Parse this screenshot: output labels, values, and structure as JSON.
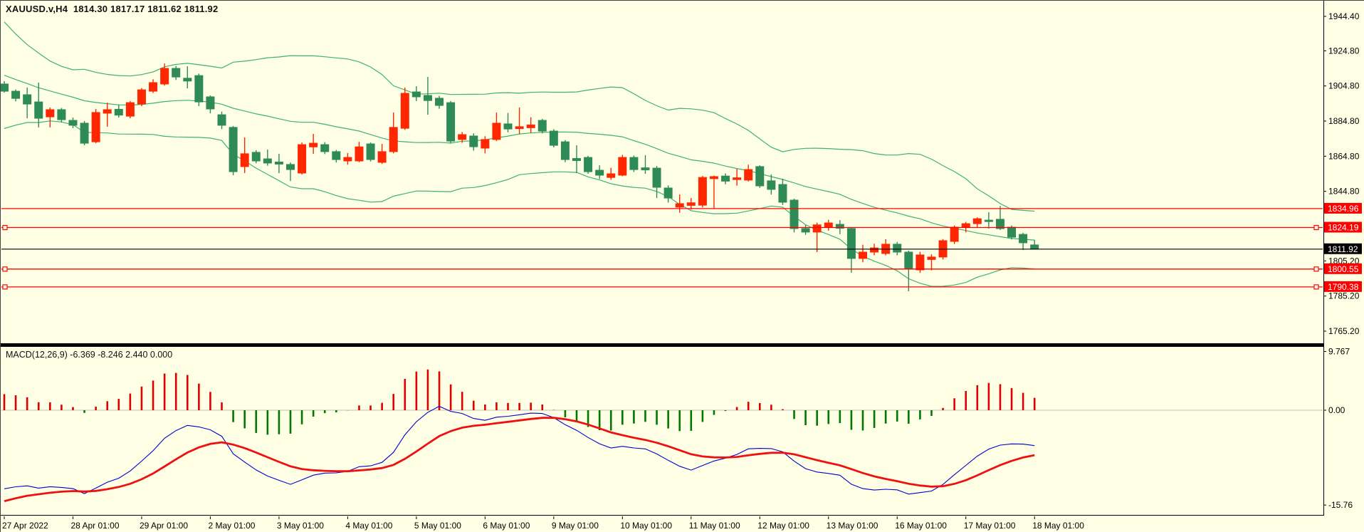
{
  "window": {
    "title": "XAUUSD.v,H4  1814.30 1817.17 1811.62 1811.92",
    "symbol": "XAUUSD.v",
    "timeframe": "H4",
    "quote": {
      "open": "1814.30",
      "high": "1817.17",
      "low": "1811.62",
      "close": "1811.92"
    }
  },
  "macd_panel": {
    "label": "MACD(12,26,9) -6.369 -8.246 2.440 0.000",
    "axis_labels": [
      {
        "text": "9.767",
        "value": 9.767
      },
      {
        "text": "0.00",
        "value": 0
      },
      {
        "text": "-15.76",
        "value": -15.76
      }
    ]
  },
  "price_axis": {
    "ticks": [
      {
        "text": "1944.40",
        "value": 1944.4
      },
      {
        "text": "1924.80",
        "value": 1924.8
      },
      {
        "text": "1904.80",
        "value": 1904.8
      },
      {
        "text": "1884.80",
        "value": 1884.8
      },
      {
        "text": "1864.80",
        "value": 1864.8
      },
      {
        "text": "1844.80",
        "value": 1844.8
      },
      {
        "text": "1805.20",
        "value": 1805.2
      },
      {
        "text": "1785.20",
        "value": 1785.2
      },
      {
        "text": "1765.20",
        "value": 1765.2
      }
    ],
    "bid_badge": {
      "text": "1811.92",
      "value": 1811.92
    }
  },
  "time_axis": [
    "27 Apr 2022",
    "28 Apr 01:00",
    "29 Apr 01:00",
    "2 May 01:00",
    "3 May 01:00",
    "4 May 01:00",
    "5 May 01:00",
    "6 May 01:00",
    "9 May 01:00",
    "10 May 01:00",
    "11 May 01:00",
    "12 May 01:00",
    "13 May 01:00",
    "16 May 01:00",
    "17 May 01:00",
    "18 May 01:00"
  ],
  "levels": [
    {
      "text": "1834.96",
      "value": 1834.96,
      "selected": false
    },
    {
      "text": "1824.19",
      "value": 1824.19,
      "selected": true
    },
    {
      "text": "1800.55",
      "value": 1800.55,
      "selected": true
    },
    {
      "text": "1790.38",
      "value": 1790.38,
      "selected": true
    }
  ],
  "colors": {
    "background": "#FFFFE6",
    "bull_candle": "#FF2600",
    "bear_candle": "#2E8B57",
    "bollinger": "#3CB371",
    "level_line": "#FF0000",
    "bid_line": "#000000",
    "badge_red_bg": "#FF0000",
    "badge_black_bg": "#000000",
    "badge_text": "#FFFFFF",
    "macd_line": "#0000CD",
    "macd_signal": "#EE1111",
    "hist_positive": "#DD0000",
    "hist_negative": "#007800",
    "axis_text": "#000000",
    "border": "#000000"
  },
  "chart_data": {
    "type": "candlestick+macd",
    "title": "XAUUSD.v H4 candlestick chart with Bollinger Bands(20,2) and MACD(12,26,9)",
    "x_categories_days": [
      "27 Apr 2022",
      "28 Apr 01:00",
      "29 Apr 01:00",
      "2 May 01:00",
      "3 May 01:00",
      "4 May 01:00",
      "5 May 01:00",
      "6 May 01:00",
      "9 May 01:00",
      "10 May 01:00",
      "11 May 01:00",
      "12 May 01:00",
      "13 May 01:00",
      "16 May 01:00",
      "17 May 01:00",
      "18 May 01:00"
    ],
    "candles_per_day": 6,
    "price_range_visible": [
      1758,
      1953
    ],
    "macd_range_visible": [
      -15.76,
      9.767
    ],
    "grid": false,
    "ohlc": [
      [
        1905.9,
        1907.5,
        1901.0,
        1901.8
      ],
      [
        1901.8,
        1902.8,
        1896.0,
        1897.7
      ],
      [
        1899.8,
        1903.9,
        1886.4,
        1894.5
      ],
      [
        1895.7,
        1906.7,
        1881.2,
        1886.4
      ],
      [
        1887.2,
        1892.5,
        1881.2,
        1891.3
      ],
      [
        1891.3,
        1892.3,
        1884.0,
        1885.6
      ],
      [
        1885.2,
        1886.8,
        1880.8,
        1882.4
      ],
      [
        1883.6,
        1884.8,
        1871.0,
        1872.2
      ],
      [
        1873.0,
        1891.7,
        1872.2,
        1889.7
      ],
      [
        1889.3,
        1895.3,
        1881.6,
        1891.3
      ],
      [
        1891.5,
        1894.2,
        1886.8,
        1888.2
      ],
      [
        1887.6,
        1896.2,
        1886.4,
        1895.3
      ],
      [
        1894.5,
        1903.6,
        1893.3,
        1902.6
      ],
      [
        1901.8,
        1908.6,
        1900.8,
        1906.7
      ],
      [
        1905.9,
        1917.6,
        1905.0,
        1914.8
      ],
      [
        1914.8,
        1916.2,
        1908.2,
        1909.9
      ],
      [
        1909.2,
        1916.0,
        1903.4,
        1907.6
      ],
      [
        1910.7,
        1911.8,
        1893.3,
        1895.7
      ],
      [
        1898.6,
        1899.4,
        1889.2,
        1891.7
      ],
      [
        1888.4,
        1890.2,
        1880.2,
        1882.4
      ],
      [
        1881.2,
        1882.0,
        1854.0,
        1856.0
      ],
      [
        1858.9,
        1875.5,
        1855.2,
        1866.2
      ],
      [
        1867.0,
        1868.2,
        1860.8,
        1862.1
      ],
      [
        1863.3,
        1868.6,
        1859.4,
        1860.9
      ],
      [
        1861.5,
        1866.2,
        1855.2,
        1860.3
      ],
      [
        1860.1,
        1861.2,
        1850.7,
        1857.2
      ],
      [
        1855.2,
        1872.6,
        1854.4,
        1871.4
      ],
      [
        1870.1,
        1877.5,
        1866.2,
        1872.2
      ],
      [
        1871.4,
        1872.8,
        1866.0,
        1867.4
      ],
      [
        1867.4,
        1868.4,
        1861.2,
        1862.9
      ],
      [
        1862.1,
        1866.6,
        1860.0,
        1864.1
      ],
      [
        1862.1,
        1873.0,
        1861.4,
        1870.1
      ],
      [
        1871.8,
        1872.6,
        1861.8,
        1862.9
      ],
      [
        1861.3,
        1871.8,
        1860.4,
        1867.4
      ],
      [
        1867.4,
        1889.7,
        1866.4,
        1881.2
      ],
      [
        1880.7,
        1903.9,
        1879.8,
        1900.6
      ],
      [
        1901.4,
        1904.6,
        1896.2,
        1898.6
      ],
      [
        1899.4,
        1909.9,
        1888.4,
        1896.5
      ],
      [
        1897.8,
        1899.2,
        1891.8,
        1893.7
      ],
      [
        1895.3,
        1896.2,
        1872.0,
        1873.4
      ],
      [
        1874.3,
        1878.6,
        1872.4,
        1877.1
      ],
      [
        1876.3,
        1877.8,
        1868.0,
        1870.2
      ],
      [
        1869.4,
        1876.2,
        1866.4,
        1874.3
      ],
      [
        1874.3,
        1889.7,
        1873.4,
        1883.6
      ],
      [
        1883.2,
        1889.4,
        1878.4,
        1880.3
      ],
      [
        1880.5,
        1892.5,
        1877.5,
        1881.6
      ],
      [
        1881.0,
        1887.0,
        1878.0,
        1882.6
      ],
      [
        1885.2,
        1886.0,
        1877.8,
        1879.1
      ],
      [
        1879.1,
        1880.2,
        1869.8,
        1871.0
      ],
      [
        1873.0,
        1874.0,
        1861.4,
        1862.9
      ],
      [
        1863.5,
        1871.0,
        1855.2,
        1862.3
      ],
      [
        1864.1,
        1865.0,
        1854.8,
        1856.0
      ],
      [
        1856.8,
        1859.6,
        1851.8,
        1854.0
      ],
      [
        1852.7,
        1858.2,
        1851.4,
        1854.8
      ],
      [
        1854.0,
        1865.6,
        1853.4,
        1864.1
      ],
      [
        1864.1,
        1865.2,
        1855.8,
        1857.2
      ],
      [
        1858.2,
        1865.4,
        1854.8,
        1857.0
      ],
      [
        1858.0,
        1859.2,
        1841.0,
        1847.1
      ],
      [
        1846.7,
        1848.2,
        1838.4,
        1841.0
      ],
      [
        1835.8,
        1843.0,
        1832.6,
        1837.8
      ],
      [
        1836.8,
        1841.0,
        1834.4,
        1838.3
      ],
      [
        1836.9,
        1853.6,
        1835.6,
        1852.7
      ],
      [
        1852.0,
        1853.8,
        1835.0,
        1853.2
      ],
      [
        1853.5,
        1855.0,
        1848.8,
        1850.6
      ],
      [
        1851.5,
        1857.6,
        1848.0,
        1852.5
      ],
      [
        1851.2,
        1860.0,
        1850.4,
        1857.2
      ],
      [
        1858.9,
        1859.6,
        1846.8,
        1847.9
      ],
      [
        1850.8,
        1854.4,
        1843.0,
        1845.9
      ],
      [
        1848.7,
        1852.0,
        1837.0,
        1838.6
      ],
      [
        1839.8,
        1840.6,
        1821.4,
        1823.6
      ],
      [
        1823.6,
        1825.6,
        1820.0,
        1821.6
      ],
      [
        1821.6,
        1827.0,
        1810.2,
        1825.7
      ],
      [
        1824.4,
        1828.6,
        1822.4,
        1826.8
      ],
      [
        1826.0,
        1828.4,
        1820.4,
        1823.8
      ],
      [
        1823.6,
        1824.2,
        1798.5,
        1806.6
      ],
      [
        1806.6,
        1814.4,
        1804.4,
        1810.2
      ],
      [
        1810.2,
        1815.0,
        1808.4,
        1812.6
      ],
      [
        1809.4,
        1817.5,
        1808.4,
        1814.7
      ],
      [
        1814.7,
        1816.0,
        1808.4,
        1810.2
      ],
      [
        1810.2,
        1811.0,
        1787.9,
        1800.5
      ],
      [
        1800.1,
        1810.4,
        1798.4,
        1808.6
      ],
      [
        1806.0,
        1809.0,
        1799.8,
        1807.4
      ],
      [
        1807.4,
        1817.6,
        1806.0,
        1816.7
      ],
      [
        1816.3,
        1825.4,
        1814.8,
        1824.4
      ],
      [
        1824.4,
        1827.4,
        1821.4,
        1826.4
      ],
      [
        1826.4,
        1830.0,
        1824.2,
        1829.2
      ],
      [
        1828.4,
        1832.9,
        1823.6,
        1827.6
      ],
      [
        1828.9,
        1836.4,
        1822.8,
        1823.6
      ],
      [
        1824.4,
        1825.4,
        1817.4,
        1818.7
      ],
      [
        1820.3,
        1821.2,
        1811.4,
        1815.5
      ],
      [
        1814.3,
        1817.17,
        1811.62,
        1811.92
      ]
    ],
    "pre_history_closes": [
      1983,
      1972,
      1962,
      1975,
      1968,
      1958,
      1951,
      1946,
      1952,
      1957,
      1949,
      1943,
      1938,
      1948,
      1955,
      1947,
      1940,
      1934,
      1928,
      1922,
      1917,
      1913,
      1909,
      1905,
      1901,
      1898,
      1895,
      1893,
      1896,
      1900,
      1903,
      1905,
      1904,
      1906
    ],
    "indicators": {
      "bollinger": {
        "period": 20,
        "deviations": 2
      },
      "macd": {
        "fast": 12,
        "slow": 26,
        "signal": 9,
        "hist_scale": 1.3
      }
    }
  }
}
